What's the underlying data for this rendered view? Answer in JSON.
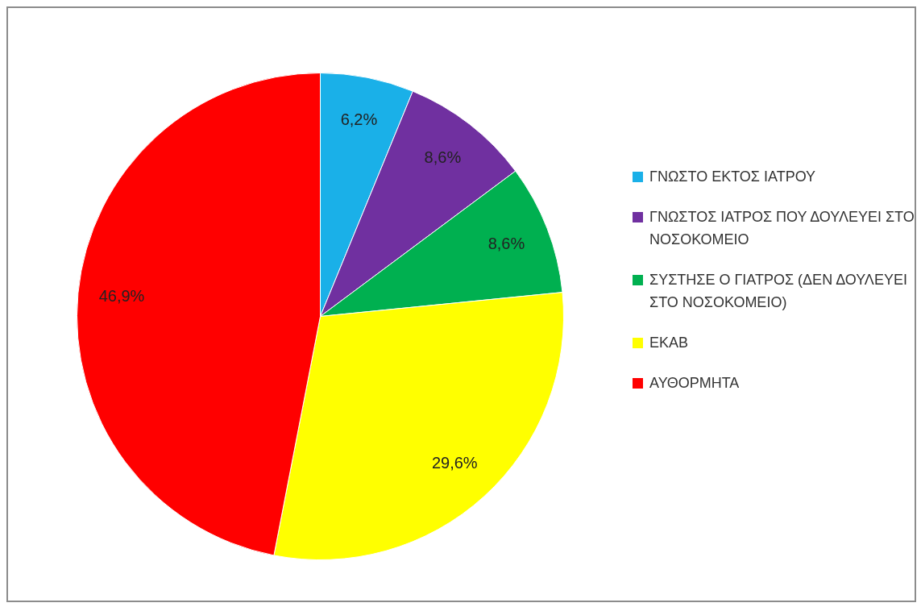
{
  "chart_data": {
    "type": "pie",
    "categories": [
      "ΓΝΩΣΤΟ ΕΚΤΟΣ ΙΑΤΡΟΥ",
      "ΓΝΩΣΤΟΣ ΙΑΤΡΟΣ ΠΟΥ ΔΟΥΛΕΥΕΙ ΣΤΟ ΝΟΣΟΚΟΜΕΙΟ",
      "ΣΥΣΤΗΣΕ Ο ΓΙΑΤΡΟΣ (ΔΕΝ ΔΟΥΛΕΥΕΙ ΣΤΟ ΝΟΣΟΚΟΜΕΙΟ)",
      "ΕΚΑΒ",
      "ΑΥΘΟΡΜΗΤΑ"
    ],
    "values": [
      6.2,
      8.6,
      8.6,
      29.6,
      46.9
    ],
    "value_labels": [
      "6,2%",
      "8,6%",
      "8,6%",
      "29,6%",
      "46,9%"
    ],
    "colors": [
      "#1ab0e8",
      "#7030a0",
      "#00b050",
      "#ffff00",
      "#ff0000"
    ],
    "legend": "right"
  }
}
